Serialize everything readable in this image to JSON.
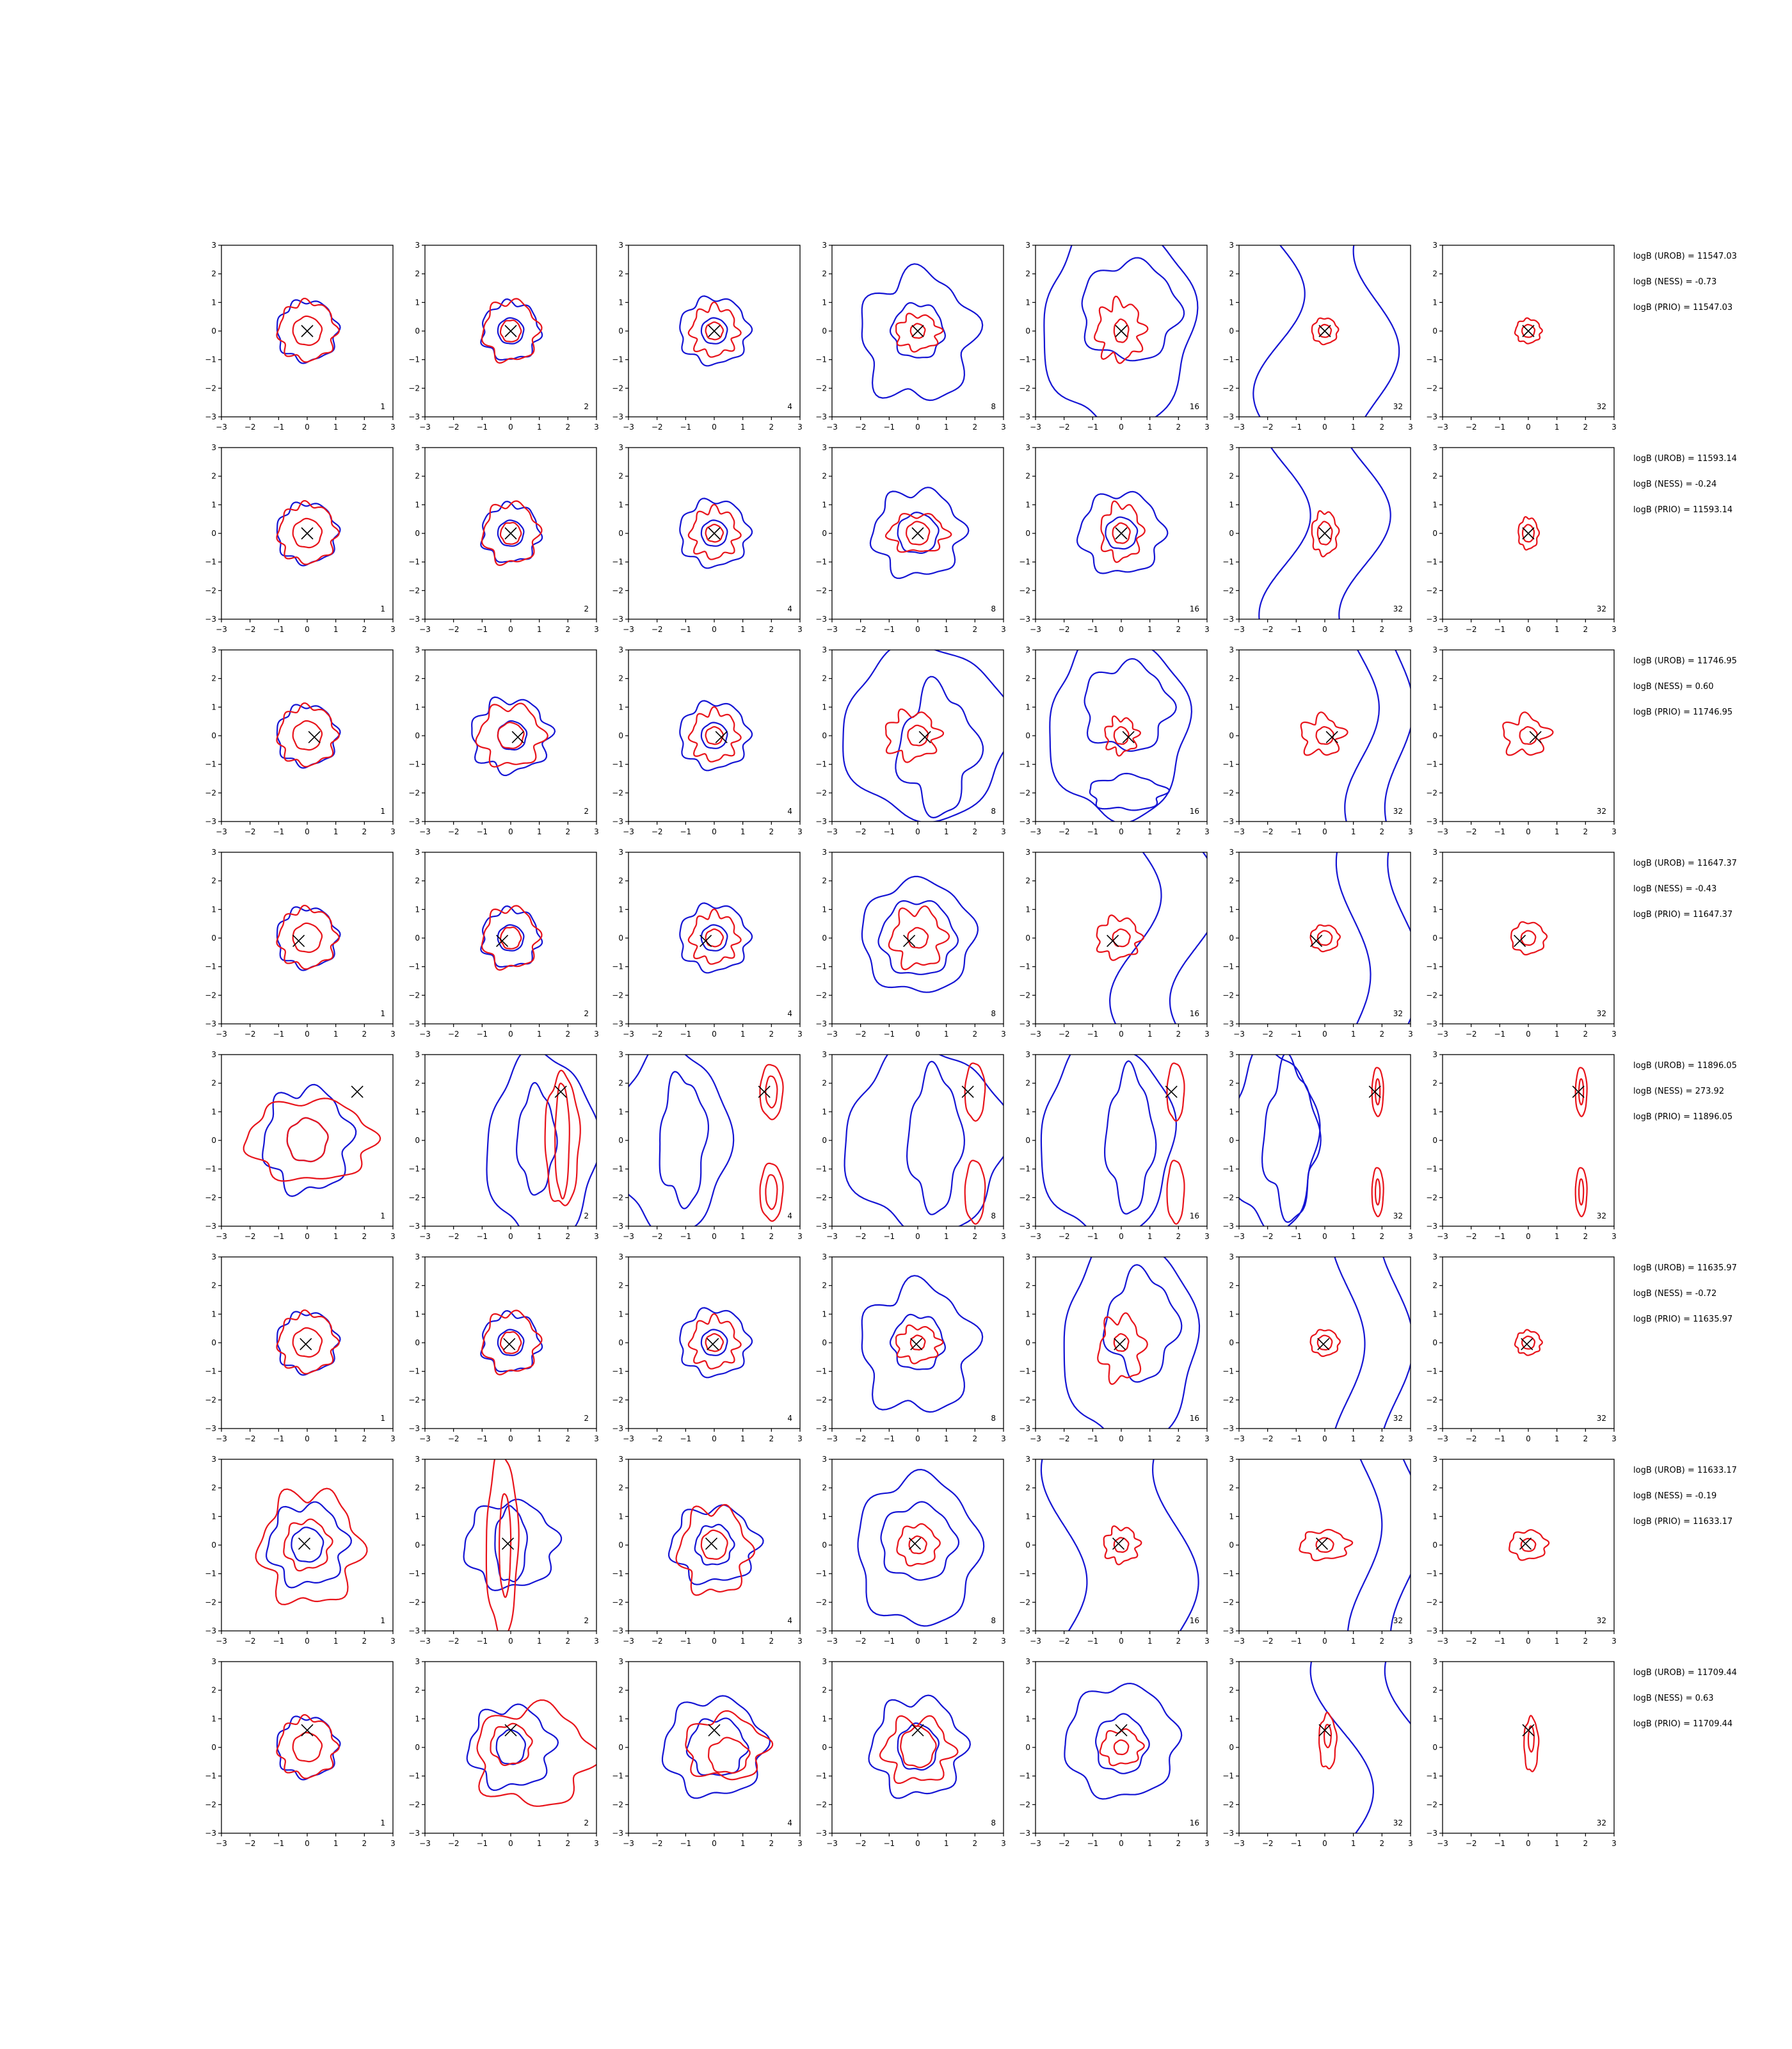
{
  "chart_data": {
    "type": "contour",
    "xlim": [
      -3,
      3
    ],
    "ylim": [
      -3,
      3
    ],
    "xticks": [
      "−3",
      "−2",
      "−1",
      "0",
      "1",
      "2",
      "3"
    ],
    "yticks": [
      "3",
      "2",
      "1",
      "0",
      "−1",
      "−2",
      "−3"
    ],
    "grid": false,
    "legend": "none",
    "colors": {
      "inner": "#e8141b",
      "outer": "#1515d4",
      "marker": "#000000"
    },
    "rows": [
      {
        "marker": [
          0.0,
          0.0
        ],
        "corners": [
          "1",
          "2",
          "4",
          "8",
          "16",
          "32",
          "32"
        ],
        "stats": [
          "logB (UROB) = 11547.03",
          "logB (NESS) = -0.73",
          "logB (PRIO) = 11547.03"
        ]
      },
      {
        "marker": [
          0.0,
          0.0
        ],
        "corners": [
          "1",
          "2",
          "4",
          "8",
          "16",
          "32",
          "32"
        ],
        "stats": [
          "logB (UROB) = 11593.14",
          "logB (NESS) = -0.24",
          "logB (PRIO) = 11593.14"
        ]
      },
      {
        "marker": [
          0.25,
          -0.05
        ],
        "corners": [
          "1",
          "2",
          "4",
          "8",
          "16",
          "32",
          "32"
        ],
        "stats": [
          "logB (UROB) = 11746.95",
          "logB (NESS) = 0.60",
          "logB (PRIO) = 11746.95"
        ]
      },
      {
        "marker": [
          -0.3,
          -0.1
        ],
        "corners": [
          "1",
          "2",
          "4",
          "8",
          "16",
          "32",
          "32"
        ],
        "stats": [
          "logB (UROB) = 11647.37",
          "logB (NESS) = -0.43",
          "logB (PRIO) = 11647.37"
        ]
      },
      {
        "marker": [
          1.75,
          1.7
        ],
        "corners": [
          "1",
          "2",
          "4",
          "8",
          "16",
          "32",
          "32"
        ],
        "stats": [
          "logB (UROB) = 11896.05",
          "logB (NESS) = 273.92",
          "logB (PRIO) = 11896.05"
        ]
      },
      {
        "marker": [
          -0.05,
          -0.05
        ],
        "corners": [
          "1",
          "2",
          "4",
          "8",
          "16",
          "32",
          "32"
        ],
        "stats": [
          "logB (UROB) = 11635.97",
          "logB (NESS) = -0.72",
          "logB (PRIO) = 11635.97"
        ]
      },
      {
        "marker": [
          -0.1,
          0.05
        ],
        "corners": [
          "1",
          "2",
          "4",
          "8",
          "16",
          "32",
          "32"
        ],
        "stats": [
          "logB (UROB) = 11633.17",
          "logB (NESS) = -0.19",
          "logB (PRIO) = 11633.17"
        ]
      },
      {
        "marker": [
          0.0,
          0.6
        ],
        "corners": [
          "1",
          "2",
          "4",
          "8",
          "16",
          "32",
          "32"
        ],
        "stats": [
          "logB (UROB) = 11709.44",
          "logB (NESS) = 0.63",
          "logB (PRIO) = 11709.44"
        ]
      }
    ]
  }
}
